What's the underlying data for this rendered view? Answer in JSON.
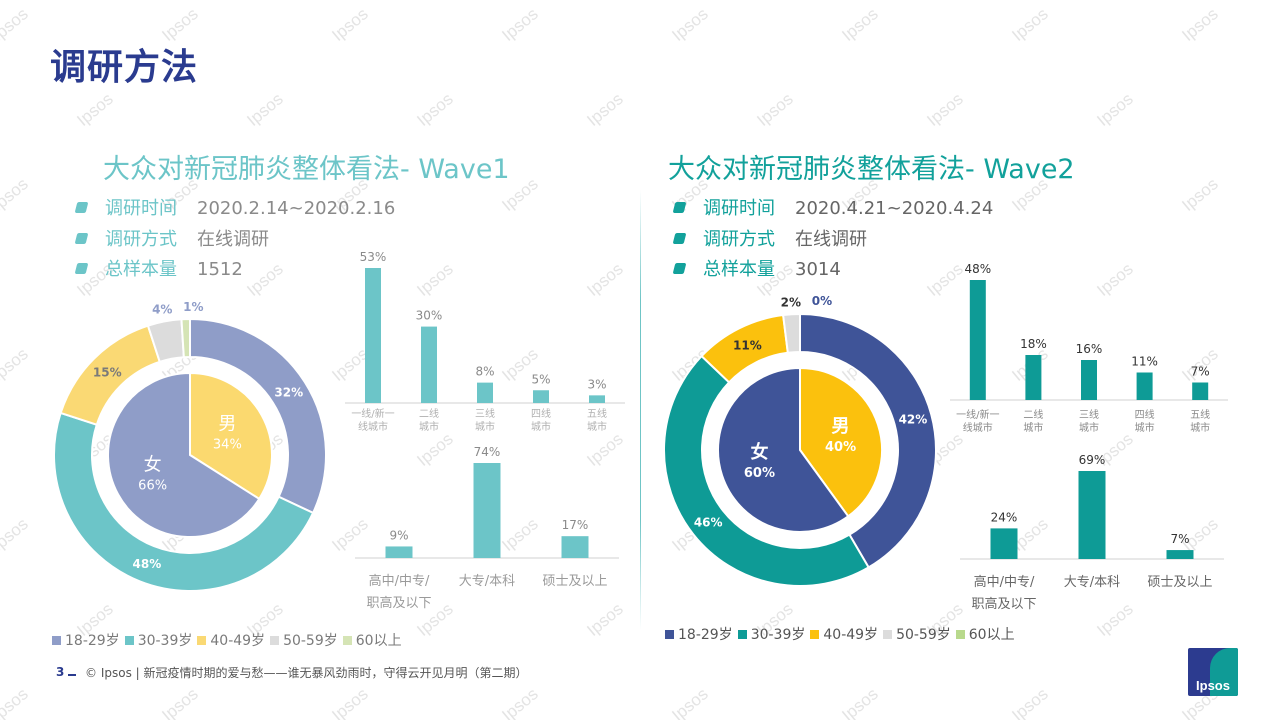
{
  "page": {
    "title": "调研方法",
    "footer_page": "3",
    "footer_text": "© Ipsos | 新冠疫情时期的爱与愁——谁无暴风劲雨时，守得云开见月明（第二期）",
    "logo_text": "Ipsos",
    "watermark_text": "Ipsos"
  },
  "colors": {
    "title": "#2a3b8f",
    "wave1_title": "#6cc5c8",
    "wave2_title": "#12a19b"
  },
  "wave1": {
    "title": "大众对新冠肺炎整体看法- Wave1",
    "info": [
      {
        "label": "调研时间",
        "value": "2020.2.14~2020.2.16"
      },
      {
        "label": "调研方式",
        "value": "在线调研"
      },
      {
        "label": "总样本量",
        "value": "1512"
      }
    ],
    "legend": [
      {
        "label": "18-29岁",
        "color": "#8f9dc8"
      },
      {
        "label": "30-39岁",
        "color": "#6cc5c8"
      },
      {
        "label": "40-49岁",
        "color": "#fad974"
      },
      {
        "label": "50-59岁",
        "color": "#dcdcdc"
      },
      {
        "label": "60以上",
        "color": "#d5e4b5"
      }
    ]
  },
  "wave2": {
    "title": "大众对新冠肺炎整体看法- Wave2",
    "info": [
      {
        "label": "调研时间",
        "value": "2020.4.21~2020.4.24"
      },
      {
        "label": "调研方式",
        "value": "在线调研"
      },
      {
        "label": "总样本量",
        "value": "3014"
      }
    ],
    "legend": [
      {
        "label": "18-29岁",
        "color": "#3f5498"
      },
      {
        "label": "30-39岁",
        "color": "#0e9b96"
      },
      {
        "label": "40-49岁",
        "color": "#fbc10d"
      },
      {
        "label": "50-59岁",
        "color": "#dcdcdc"
      },
      {
        "label": "60以上",
        "color": "#b8d98c"
      }
    ]
  },
  "chart_data": [
    {
      "id": "wave1_gender",
      "type": "pie",
      "categories": [
        "女",
        "男"
      ],
      "values": [
        66,
        34
      ],
      "value_labels": [
        "66%",
        "34%"
      ],
      "colors": [
        "#8f9dc8",
        "#fbd96f"
      ]
    },
    {
      "id": "wave1_age",
      "type": "pie",
      "categories": [
        "18-29岁",
        "30-39岁",
        "40-49岁",
        "50-59岁",
        "60以上"
      ],
      "values": [
        32,
        48,
        15,
        4,
        1
      ],
      "value_labels": [
        "32%",
        "48%",
        "15%",
        "4%",
        "1%"
      ],
      "colors": [
        "#8f9dc8",
        "#6cc5c8",
        "#fad974",
        "#dcdcdc",
        "#d5e4b5"
      ]
    },
    {
      "id": "wave1_city",
      "type": "bar",
      "categories": [
        "一线/新一\n线城市",
        "二线\n城市",
        "三线\n城市",
        "四线\n城市",
        "五线\n城市"
      ],
      "values": [
        53,
        30,
        8,
        5,
        3
      ],
      "value_labels": [
        "53%",
        "30%",
        "8%",
        "5%",
        "3%"
      ],
      "color": "#6cc5c8"
    },
    {
      "id": "wave1_education",
      "type": "bar",
      "categories": [
        "高中/中专/\n职高及以下",
        "大专/本科",
        "硕士及以上"
      ],
      "values": [
        9,
        74,
        17
      ],
      "value_labels": [
        "9%",
        "74%",
        "17%"
      ],
      "color": "#6cc5c8"
    },
    {
      "id": "wave2_gender",
      "type": "pie",
      "categories": [
        "女",
        "男"
      ],
      "values": [
        60,
        40
      ],
      "value_labels": [
        "60%",
        "40%"
      ],
      "colors": [
        "#3f5498",
        "#fbc10d"
      ]
    },
    {
      "id": "wave2_age",
      "type": "pie",
      "categories": [
        "18-29岁",
        "30-39岁",
        "40-49岁",
        "50-59岁",
        "60以上"
      ],
      "values": [
        42,
        46,
        11,
        2,
        0
      ],
      "value_labels": [
        "42%",
        "46%",
        "11%",
        "2%",
        "0%"
      ],
      "colors": [
        "#3f5498",
        "#0e9b96",
        "#fbc10d",
        "#dcdcdc",
        "#b8d98c"
      ]
    },
    {
      "id": "wave2_city",
      "type": "bar",
      "categories": [
        "一线/新一\n线城市",
        "二线\n城市",
        "三线\n城市",
        "四线\n城市",
        "五线\n城市"
      ],
      "values": [
        48,
        18,
        16,
        11,
        7
      ],
      "value_labels": [
        "48%",
        "18%",
        "16%",
        "11%",
        "7%"
      ],
      "color": "#0e9b96"
    },
    {
      "id": "wave2_education",
      "type": "bar",
      "categories": [
        "高中/中专/\n职高及以下",
        "大专/本科",
        "硕士及以上"
      ],
      "values": [
        24,
        69,
        7
      ],
      "value_labels": [
        "24%",
        "69%",
        "7%"
      ],
      "color": "#0e9b96"
    }
  ]
}
